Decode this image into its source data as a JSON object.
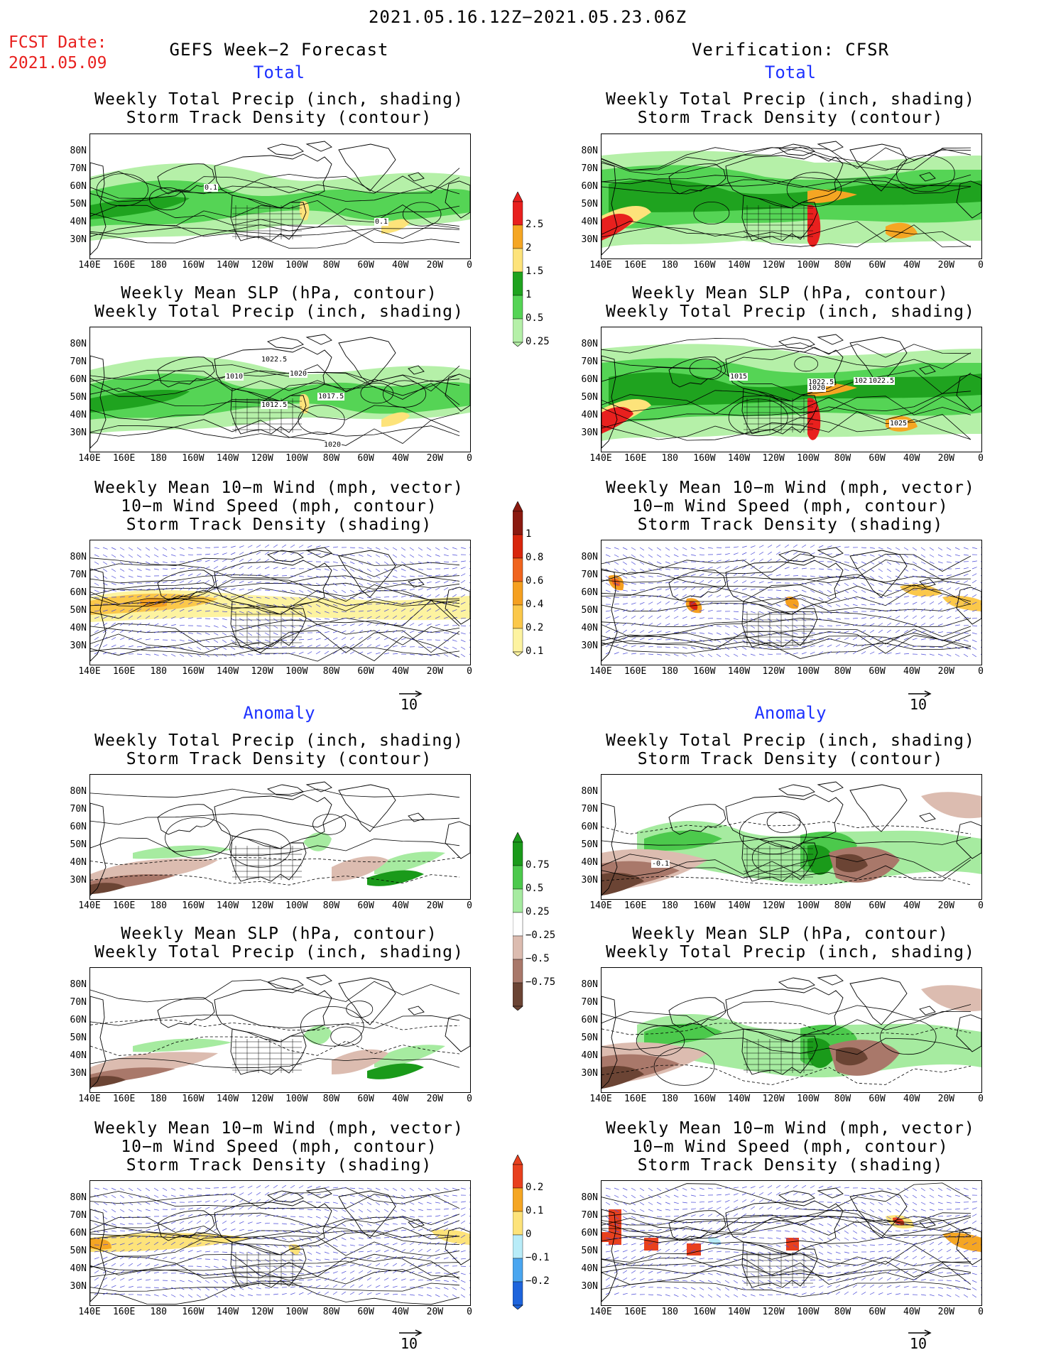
{
  "header": {
    "period": "2021.05.16.12Z−2021.05.23.06Z",
    "fcst_label": "FCST Date:",
    "fcst_date": "2021.05.09",
    "left_title": "GEFS Week−2 Forecast",
    "right_title": "Verification: CFSR",
    "total": "Total",
    "anomaly": "Anomaly"
  },
  "titles": {
    "precip_storm": [
      "Weekly Total Precip (inch, shading)",
      "Storm Track Density (contour)"
    ],
    "slp_precip": [
      "Weekly Mean SLP (hPa, contour)",
      "Weekly Total Precip (inch, shading)"
    ],
    "wind": [
      "Weekly Mean 10−m Wind (mph, vector)",
      "10−m Wind Speed (mph, contour)",
      "Storm Track Density (shading)"
    ]
  },
  "axes": {
    "lat_labels": [
      "80N",
      "70N",
      "60N",
      "50N",
      "40N",
      "30N"
    ],
    "lon_labels": [
      "140E",
      "160E",
      "180",
      "160W",
      "140W",
      "120W",
      "100W",
      "80W",
      "60W",
      "40W",
      "20W",
      "0"
    ]
  },
  "vector_ref": "10",
  "colorbars": {
    "precip_total": {
      "labels": [
        "2.5",
        "2",
        "1.5",
        "1",
        "0.5",
        "0.25"
      ],
      "colors": [
        "#e8201e",
        "#f5a623",
        "#fde37a",
        "#1fa31f",
        "#55d455",
        "#b5f0a8"
      ]
    },
    "storm_total": {
      "labels": [
        "1",
        "0.8",
        "0.6",
        "0.4",
        "0.2",
        "0.1"
      ],
      "colors": [
        "#8b1a10",
        "#d8260c",
        "#f0641e",
        "#f5a020",
        "#fbc84a",
        "#fdf3a0"
      ]
    },
    "precip_anom": {
      "labels": [
        "0.75",
        "0.5",
        "0.25",
        "−0.25",
        "−0.5",
        "−0.75"
      ],
      "colors": [
        "#1a9a1a",
        "#4cc94c",
        "#a6eba0",
        "#ffffff",
        "#dcbcb0",
        "#a9786a",
        "#6b4434"
      ]
    },
    "storm_anom": {
      "labels": [
        "0.2",
        "0.1",
        "0",
        "−0.1",
        "−0.2"
      ],
      "colors": [
        "#e8401e",
        "#f5a623",
        "#fde37a",
        "#b8ecf8",
        "#4aa6f0",
        "#1e64dc"
      ]
    }
  },
  "contour_labels": {
    "left_precip_total": [
      "0.1",
      "0.1"
    ],
    "left_slp_total": [
      "1022.5",
      "1010",
      "1020",
      "1017.5",
      "1012.5",
      "1020"
    ],
    "right_slp_total": [
      "1015",
      "1022.5",
      "102",
      "1022.5",
      "1020",
      "1025"
    ],
    "right_precip_anom": [
      "-0.1"
    ]
  }
}
